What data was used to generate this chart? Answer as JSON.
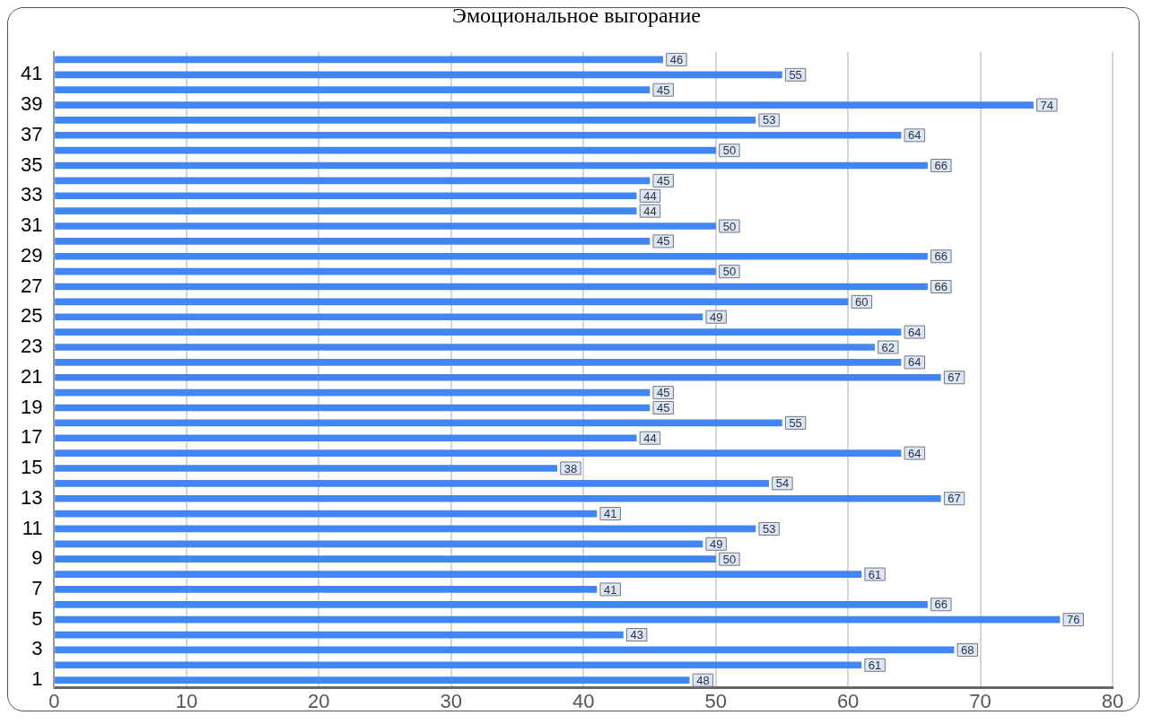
{
  "chart_data": {
    "type": "bar",
    "orientation": "horizontal",
    "title": "Эмоциональное выгорание",
    "categories": [
      null,
      "41",
      null,
      "39",
      null,
      "37",
      null,
      "35",
      null,
      "33",
      null,
      "31",
      null,
      "29",
      null,
      "27",
      null,
      "25",
      null,
      "23",
      null,
      "21",
      null,
      "19",
      null,
      "17",
      null,
      "15",
      null,
      "13",
      null,
      "11",
      null,
      "9",
      null,
      "7",
      null,
      "5",
      null,
      "3",
      null,
      "1"
    ],
    "values": [
      46,
      55,
      45,
      74,
      53,
      64,
      50,
      66,
      45,
      44,
      44,
      50,
      45,
      66,
      50,
      66,
      60,
      49,
      64,
      62,
      64,
      67,
      45,
      45,
      55,
      44,
      64,
      38,
      54,
      67,
      41,
      53,
      49,
      50,
      61,
      41,
      66,
      76,
      43,
      68,
      61,
      48
    ],
    "color": "#4285f4",
    "xlim": [
      0,
      80
    ],
    "xticks": [
      0,
      10,
      20,
      30,
      40,
      50,
      60,
      70,
      80
    ],
    "grid": "x",
    "data_labels": true
  }
}
